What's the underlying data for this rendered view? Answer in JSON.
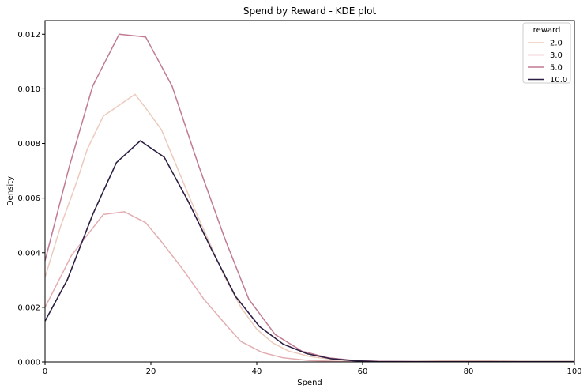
{
  "chart_data": {
    "type": "line",
    "title": "Spend by Reward - KDE plot",
    "xlabel": "Spend",
    "ylabel": "Density",
    "xlim": [
      0,
      100
    ],
    "ylim": [
      0,
      0.0125
    ],
    "x_ticks": [
      0,
      20,
      40,
      60,
      80,
      100
    ],
    "x_tick_labels": [
      "0",
      "20",
      "40",
      "60",
      "80",
      "100"
    ],
    "y_ticks": [
      0,
      0.002,
      0.004,
      0.006,
      0.008,
      0.01,
      0.012
    ],
    "y_tick_labels": [
      "0.000",
      "0.002",
      "0.004",
      "0.006",
      "0.008",
      "0.010",
      "0.012"
    ],
    "grid": false,
    "legend": {
      "title": "reward",
      "placement": "top-right"
    },
    "series": [
      {
        "name": "2.0",
        "color": "#eccbbd",
        "x": [
          0,
          3,
          6,
          8,
          11,
          14,
          17,
          19,
          22,
          25,
          28,
          31,
          34,
          37,
          40,
          43,
          46,
          50,
          54,
          58,
          62,
          70,
          80,
          90,
          100
        ],
        "y": [
          0.0031,
          0.005,
          0.0066,
          0.0078,
          0.009,
          0.0094,
          0.0098,
          0.0093,
          0.0085,
          0.0071,
          0.0057,
          0.0044,
          0.0031,
          0.002,
          0.0012,
          0.0007,
          0.0004,
          0.0002,
          0.0001,
          5e-05,
          2e-05,
          2e-05,
          5e-05,
          2e-05,
          2e-05
        ]
      },
      {
        "name": "3.0",
        "color": "#e3adb1",
        "x": [
          0,
          5,
          9,
          11,
          15,
          19,
          22,
          26,
          30,
          34,
          37,
          41,
          45,
          50,
          55,
          60,
          70,
          80,
          90,
          100
        ],
        "y": [
          0.002,
          0.0039,
          0.0049,
          0.0054,
          0.0055,
          0.0051,
          0.0044,
          0.0034,
          0.0023,
          0.0014,
          0.00075,
          0.00035,
          0.00015,
          5e-05,
          2e-05,
          1e-05,
          1e-05,
          1e-05,
          1e-05,
          1e-05
        ]
      },
      {
        "name": "5.0",
        "color": "#c07b92",
        "x": [
          0,
          4.5,
          9,
          14,
          19,
          24,
          29,
          34,
          38.5,
          43.5,
          48.5,
          53.5,
          58.5,
          63,
          70,
          80,
          90,
          100
        ],
        "y": [
          0.0037,
          0.0071,
          0.0101,
          0.012,
          0.0119,
          0.0101,
          0.0072,
          0.0045,
          0.0023,
          0.001,
          0.0004,
          0.00015,
          5e-05,
          2e-05,
          1e-05,
          1e-05,
          1e-05,
          1e-05
        ]
      },
      {
        "name": "10.0",
        "color": "#2d1f43",
        "x": [
          0,
          4.2,
          9,
          13.5,
          18,
          22.5,
          27,
          31.5,
          36,
          40.5,
          45,
          49.5,
          54,
          58.5,
          63,
          70,
          80,
          90,
          100
        ],
        "y": [
          0.0015,
          0.003,
          0.0054,
          0.0073,
          0.0081,
          0.0075,
          0.0059,
          0.0041,
          0.0024,
          0.0013,
          0.00065,
          0.0003,
          0.00012,
          4e-05,
          1e-05,
          1e-05,
          1e-05,
          1e-05,
          1e-05
        ]
      }
    ]
  }
}
